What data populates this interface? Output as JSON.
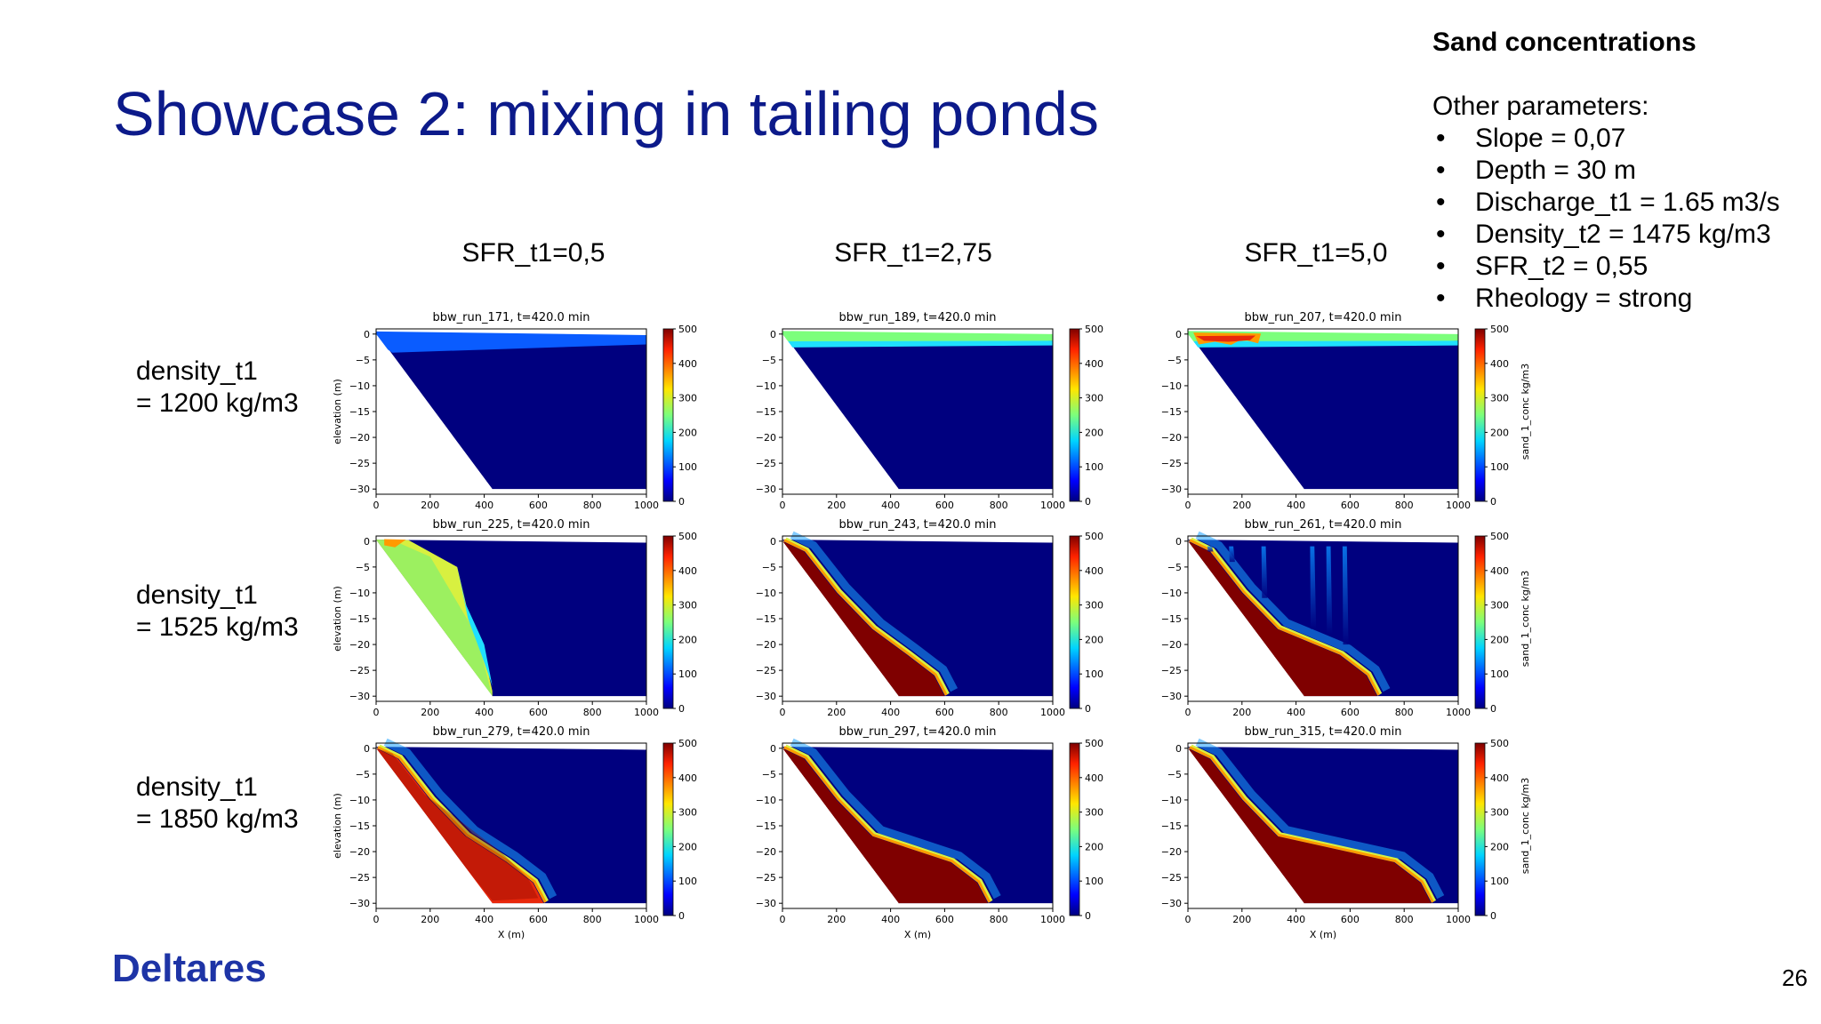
{
  "slide": {
    "title": "Showcase 2: mixing in tailing ponds",
    "page_number": "26",
    "logo": "Deltares",
    "accent_color": "#0c1a8a"
  },
  "side_panel": {
    "heading": "Sand concentrations",
    "subheading": "Other parameters:",
    "items": [
      "Slope = 0,07",
      "Depth = 30 m",
      "Discharge_t1 = 1.65 m3/s",
      "Density_t2 = 1475 kg/m3",
      "SFR_t2 = 0,55",
      "Rheology = strong"
    ]
  },
  "columns": [
    "SFR_t1=0,5",
    "SFR_t1=2,75",
    "SFR_t1=5,0"
  ],
  "rows": [
    {
      "label1": "density_t1",
      "label2": "= 1200 kg/m3"
    },
    {
      "label1": "density_t1",
      "label2": "= 1525 kg/m3"
    },
    {
      "label1": "density_t1",
      "label2": "= 1850 kg/m3"
    }
  ],
  "chart_data": {
    "type": "heatmap",
    "panels": [
      {
        "title": "bbw_run_171, t=420.0 min",
        "pattern": "surface-blue"
      },
      {
        "title": "bbw_run_189, t=420.0 min",
        "pattern": "surface-green"
      },
      {
        "title": "bbw_run_207, t=420.0 min",
        "pattern": "surface-green-red"
      },
      {
        "title": "bbw_run_225, t=420.0 min",
        "pattern": "wedge-yellow"
      },
      {
        "title": "bbw_run_243, t=420.0 min",
        "pattern": "deposit",
        "toe_x": 600
      },
      {
        "title": "bbw_run_261, t=420.0 min",
        "pattern": "deposit-plumes",
        "toe_x": 700
      },
      {
        "title": "bbw_run_279, t=420.0 min",
        "pattern": "deposit-red",
        "toe_x": 620
      },
      {
        "title": "bbw_run_297, t=420.0 min",
        "pattern": "deposit",
        "toe_x": 760
      },
      {
        "title": "bbw_run_315, t=420.0 min",
        "pattern": "deposit",
        "toe_x": 900
      }
    ],
    "xlabel": "X (m)",
    "ylabel": "elevation (m)",
    "colorbar_label": "sand_1_conc kg/m3",
    "xlim": [
      0,
      1000
    ],
    "ylim": [
      -31,
      1
    ],
    "xticks": [
      0,
      200,
      400,
      600,
      800,
      1000
    ],
    "yticks": [
      0,
      -5,
      -10,
      -15,
      -20,
      -25,
      -30
    ],
    "colorbar_range": [
      0,
      500
    ],
    "colorbar_ticks": [
      0,
      100,
      200,
      300,
      400,
      500
    ],
    "colormap": "jet",
    "slope_bottom_x": 430,
    "depth": 30
  }
}
